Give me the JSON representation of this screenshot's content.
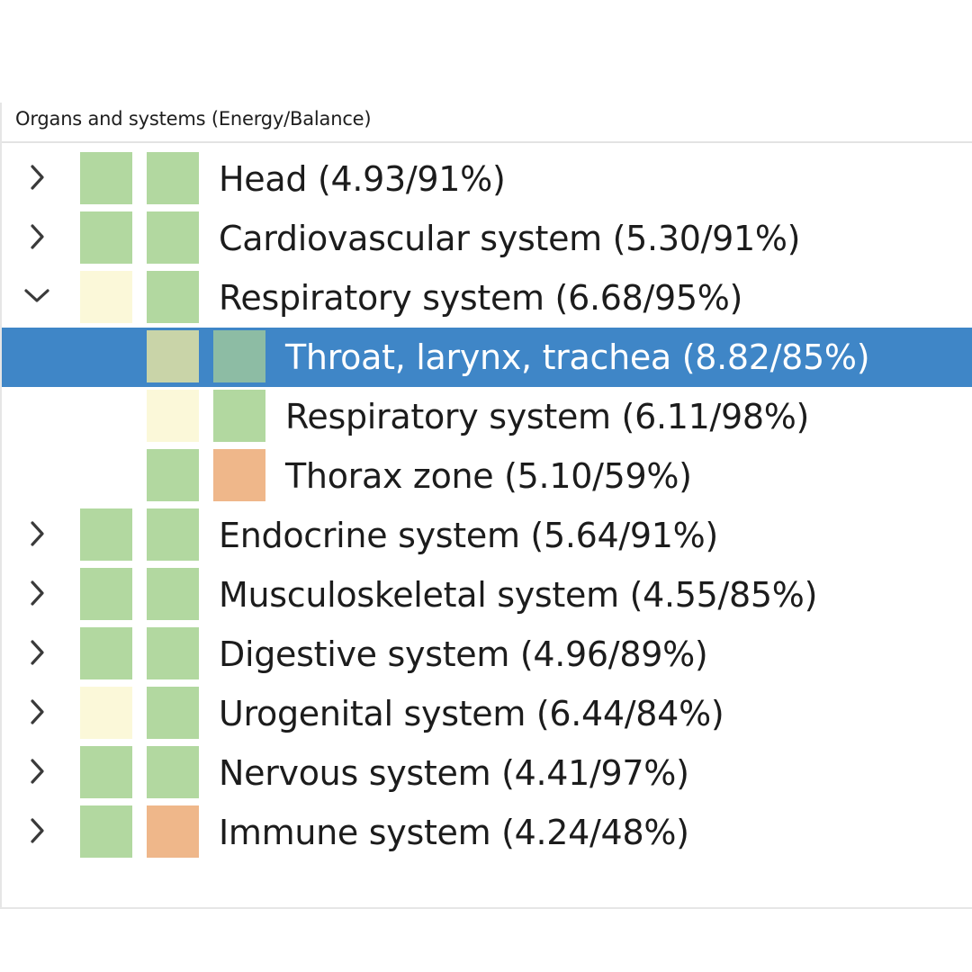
{
  "header": {
    "title": "Organs and systems (Energy/Balance)"
  },
  "colors": {
    "green": "#b2d8a0",
    "pale_yellow": "#fbf8d9",
    "orange": "#efb78a",
    "muted_green_selected": "#c9d4a8",
    "teal_selected": "#8dbca4",
    "selection": "#3f86c7"
  },
  "tree": {
    "rows": [
      {
        "label": "Head (4.93/91%)",
        "level": 0,
        "toggle": "collapsed",
        "energy_color": "#b2d8a0",
        "balance_color": "#b2d8a0",
        "selected": false
      },
      {
        "label": "Cardiovascular system (5.30/91%)",
        "level": 0,
        "toggle": "collapsed",
        "energy_color": "#b2d8a0",
        "balance_color": "#b2d8a0",
        "selected": false
      },
      {
        "label": "Respiratory system (6.68/95%)",
        "level": 0,
        "toggle": "expanded",
        "energy_color": "#fbf8d9",
        "balance_color": "#b2d8a0",
        "selected": false
      },
      {
        "label": "Throat, larynx, trachea (8.82/85%)",
        "level": 1,
        "toggle": "none",
        "energy_color": "#c9d4a8",
        "balance_color": "#8dbca4",
        "selected": true
      },
      {
        "label": "Respiratory system (6.11/98%)",
        "level": 1,
        "toggle": "none",
        "energy_color": "#fbf8d9",
        "balance_color": "#b2d8a0",
        "selected": false
      },
      {
        "label": "Thorax zone (5.10/59%)",
        "level": 1,
        "toggle": "none",
        "energy_color": "#b2d8a0",
        "balance_color": "#efb78a",
        "selected": false
      },
      {
        "label": "Endocrine system (5.64/91%)",
        "level": 0,
        "toggle": "collapsed",
        "energy_color": "#b2d8a0",
        "balance_color": "#b2d8a0",
        "selected": false
      },
      {
        "label": "Musculoskeletal system (4.55/85%)",
        "level": 0,
        "toggle": "collapsed",
        "energy_color": "#b2d8a0",
        "balance_color": "#b2d8a0",
        "selected": false
      },
      {
        "label": "Digestive system (4.96/89%)",
        "level": 0,
        "toggle": "collapsed",
        "energy_color": "#b2d8a0",
        "balance_color": "#b2d8a0",
        "selected": false
      },
      {
        "label": "Urogenital system (6.44/84%)",
        "level": 0,
        "toggle": "collapsed",
        "energy_color": "#fbf8d9",
        "balance_color": "#b2d8a0",
        "selected": false
      },
      {
        "label": "Nervous system (4.41/97%)",
        "level": 0,
        "toggle": "collapsed",
        "energy_color": "#b2d8a0",
        "balance_color": "#b2d8a0",
        "selected": false
      },
      {
        "label": "Immune system (4.24/48%)",
        "level": 0,
        "toggle": "collapsed",
        "energy_color": "#b2d8a0",
        "balance_color": "#efb78a",
        "selected": false
      }
    ]
  }
}
